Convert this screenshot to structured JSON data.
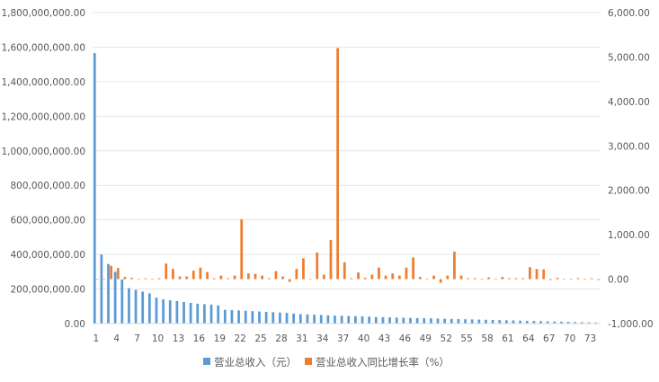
{
  "chart_data": {
    "type": "bar",
    "x_tick_labels": [
      "1",
      "4",
      "7",
      "10",
      "13",
      "16",
      "19",
      "22",
      "25",
      "28",
      "31",
      "34",
      "37",
      "40",
      "43",
      "46",
      "49",
      "52",
      "55",
      "58",
      "61",
      "64",
      "67",
      "70",
      "73"
    ],
    "y_left_tick_labels": [
      "0.00",
      "200,000,000.00",
      "400,000,000.00",
      "600,000,000.00",
      "800,000,000.00",
      "1,000,000,000.00",
      "1,200,000,000.00",
      "1,400,000,000.00",
      "1,600,000,000.00",
      "1,800,000,000.00"
    ],
    "y_right_tick_labels": [
      "-1,000.00",
      "0.00",
      "1,000.00",
      "2,000.00",
      "3,000.00",
      "4,000.00",
      "5,000.00",
      "6,000.00"
    ],
    "y_left_range": [
      0,
      1800000000
    ],
    "y_right_range": [
      -1000,
      6000
    ],
    "x": [
      1,
      2,
      3,
      4,
      5,
      6,
      7,
      8,
      9,
      10,
      11,
      12,
      13,
      14,
      15,
      16,
      17,
      18,
      19,
      20,
      21,
      22,
      23,
      24,
      25,
      26,
      27,
      28,
      29,
      30,
      31,
      32,
      33,
      34,
      35,
      36,
      37,
      38,
      39,
      40,
      41,
      42,
      43,
      44,
      45,
      46,
      47,
      48,
      49,
      50,
      51,
      52,
      53,
      54,
      55,
      56,
      57,
      58,
      59,
      60,
      61,
      62,
      63,
      64,
      65,
      66,
      67,
      68,
      69,
      70,
      71,
      72,
      73,
      74
    ],
    "series": [
      {
        "name": "营业总收入（元）",
        "axis": "left",
        "color": "#5B9BD5",
        "values": [
          1565000000,
          400000000,
          345000000,
          300000000,
          255000000,
          205000000,
          195000000,
          185000000,
          175000000,
          150000000,
          140000000,
          135000000,
          130000000,
          125000000,
          120000000,
          115000000,
          112000000,
          110000000,
          105000000,
          80000000,
          78000000,
          76000000,
          74000000,
          72000000,
          70000000,
          68000000,
          66000000,
          64000000,
          62000000,
          58000000,
          55000000,
          53000000,
          51000000,
          50000000,
          48000000,
          46000000,
          45000000,
          44000000,
          43000000,
          42000000,
          40000000,
          38000000,
          37000000,
          36000000,
          35000000,
          34000000,
          33000000,
          32000000,
          31000000,
          30000000,
          29000000,
          28000000,
          27000000,
          26000000,
          25000000,
          24000000,
          23000000,
          22000000,
          21000000,
          20000000,
          19000000,
          18000000,
          17000000,
          16000000,
          15000000,
          14000000,
          13000000,
          12000000,
          11000000,
          10000000,
          9000000,
          8000000,
          7000000,
          6000000
        ]
      },
      {
        "name": "营业总收入同比增长率（%）",
        "axis": "right",
        "color": "#ED7D31",
        "values": [
          0,
          0,
          300,
          250,
          50,
          30,
          10,
          20,
          10,
          20,
          350,
          230,
          60,
          60,
          190,
          260,
          160,
          20,
          80,
          20,
          80,
          1350,
          130,
          120,
          80,
          20,
          180,
          60,
          -60,
          230,
          470,
          0,
          600,
          100,
          880,
          5200,
          380,
          20,
          150,
          30,
          100,
          260,
          80,
          130,
          80,
          260,
          490,
          50,
          10,
          80,
          -80,
          80,
          620,
          80,
          20,
          20,
          10,
          40,
          10,
          50,
          20,
          20,
          20,
          270,
          230,
          220,
          -20,
          30,
          10,
          10,
          20,
          10,
          20,
          -20
        ]
      }
    ]
  }
}
